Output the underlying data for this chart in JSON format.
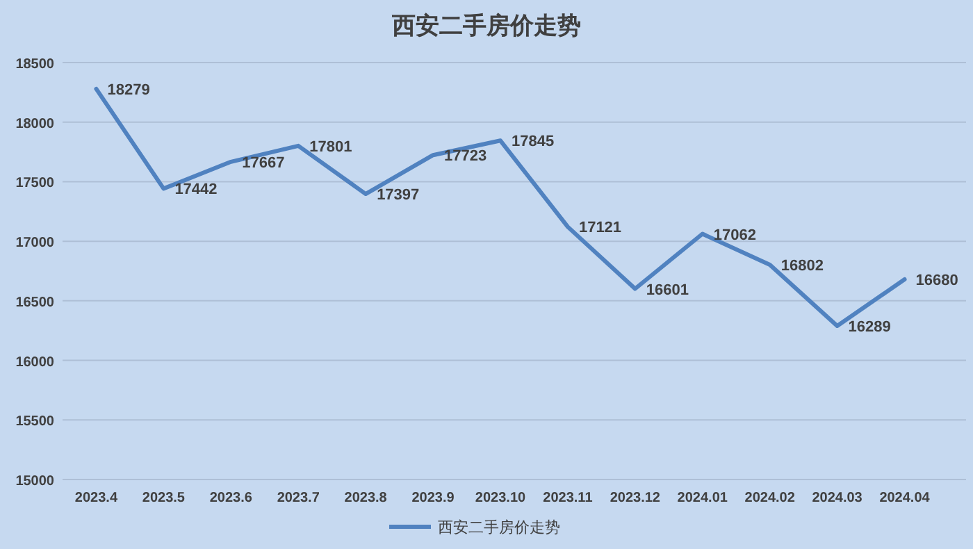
{
  "chart_data": {
    "type": "line",
    "title": "西安二手房价走势",
    "categories": [
      "2023.4",
      "2023.5",
      "2023.6",
      "2023.7",
      "2023.8",
      "2023.9",
      "2023.10",
      "2023.11",
      "2023.12",
      "2024.01",
      "2024.02",
      "2024.03",
      "2024.04"
    ],
    "series": [
      {
        "name": "西安二手房价走势",
        "color": "#5082c0",
        "values": [
          18279,
          17442,
          17667,
          17801,
          17397,
          17723,
          17845,
          17121,
          16601,
          17062,
          16802,
          16289,
          16680
        ]
      }
    ],
    "ylim": [
      15000,
      18500
    ],
    "yticks": [
      15000,
      15500,
      16000,
      16500,
      17000,
      17500,
      18000,
      18500
    ],
    "grid": "y",
    "legend": "bottom",
    "data_labels": true
  }
}
